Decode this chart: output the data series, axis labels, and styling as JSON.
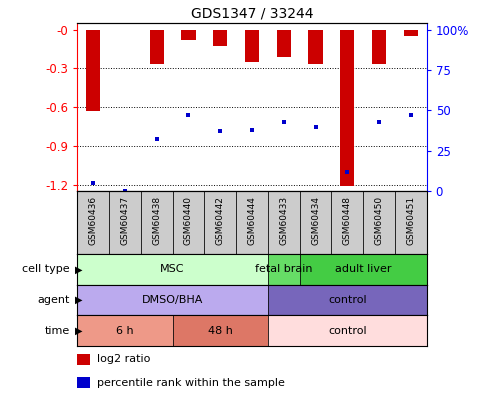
{
  "title": "GDS1347 / 33244",
  "samples": [
    "GSM60436",
    "GSM60437",
    "GSM60438",
    "GSM60440",
    "GSM60442",
    "GSM60444",
    "GSM60433",
    "GSM60434",
    "GSM60448",
    "GSM60450",
    "GSM60451"
  ],
  "log2_ratio": [
    -0.63,
    0.0,
    -0.27,
    -0.08,
    -0.13,
    -0.25,
    -0.21,
    -0.27,
    -1.21,
    -0.27,
    -0.05
  ],
  "percentile_rank": [
    5,
    0,
    32,
    47,
    37,
    38,
    43,
    40,
    12,
    43,
    47
  ],
  "ylim": [
    -1.25,
    0.05
  ],
  "y_ticks_left": [
    0,
    -0.3,
    -0.6,
    -0.9,
    -1.2
  ],
  "y_tick_labels_left": [
    "-0",
    "-0.3",
    "-0.6",
    "-0.9",
    "-1.2"
  ],
  "y_ticks_right_pct": [
    100,
    75,
    50,
    25,
    0
  ],
  "bar_color": "#cc0000",
  "dot_color": "#0000cc",
  "cell_type_spans": [
    {
      "label": "MSC",
      "start": 0,
      "end": 5,
      "color": "#ccffcc"
    },
    {
      "label": "fetal brain",
      "start": 6,
      "end": 6,
      "color": "#66dd66"
    },
    {
      "label": "adult liver",
      "start": 7,
      "end": 10,
      "color": "#44cc44"
    }
  ],
  "agent_spans": [
    {
      "label": "DMSO/BHA",
      "start": 0,
      "end": 5,
      "color": "#bbaaee"
    },
    {
      "label": "control",
      "start": 6,
      "end": 10,
      "color": "#7766bb"
    }
  ],
  "time_spans": [
    {
      "label": "6 h",
      "start": 0,
      "end": 2,
      "color": "#ee9988"
    },
    {
      "label": "48 h",
      "start": 3,
      "end": 5,
      "color": "#dd7766"
    },
    {
      "label": "control",
      "start": 6,
      "end": 10,
      "color": "#ffdddd"
    }
  ],
  "legend_items": [
    {
      "label": "log2 ratio",
      "color": "#cc0000"
    },
    {
      "label": "percentile rank within the sample",
      "color": "#0000cc"
    }
  ]
}
